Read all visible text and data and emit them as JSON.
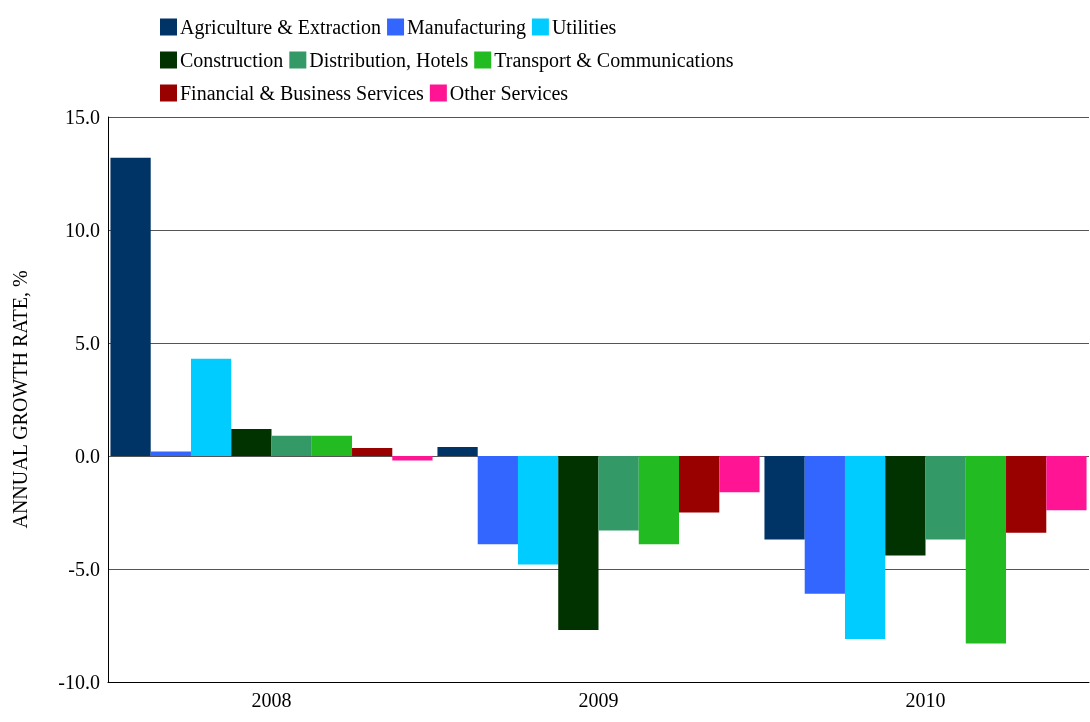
{
  "chart_data": {
    "type": "bar",
    "ylabel": "ANNUAL GROWTH RATE, %",
    "categories": [
      "2008",
      "2009",
      "2010"
    ],
    "series": [
      {
        "name": "Agriculture & Extraction",
        "color": "#003366",
        "values": [
          13.2,
          0.4,
          -3.7
        ]
      },
      {
        "name": "Manufacturing",
        "color": "#3366ff",
        "values": [
          0.2,
          -3.9,
          -6.1
        ]
      },
      {
        "name": "Utilities",
        "color": "#00ccff",
        "values": [
          4.3,
          -4.8,
          -8.1
        ]
      },
      {
        "name": "Construction",
        "color": "#003300",
        "values": [
          1.2,
          -7.7,
          -4.4
        ]
      },
      {
        "name": "Distribution, Hotels",
        "color": "#339966",
        "values": [
          0.9,
          -3.3,
          -3.7
        ]
      },
      {
        "name": "Transport & Communications",
        "color": "#22bb22",
        "values": [
          0.9,
          -3.9,
          -8.3
        ]
      },
      {
        "name": "Financial & Business Services",
        "color": "#990000",
        "values": [
          0.35,
          -2.5,
          -3.4
        ]
      },
      {
        "name": "Other Services",
        "color": "#ff1493",
        "values": [
          -0.2,
          -1.6,
          -2.4
        ]
      }
    ],
    "ylim": [
      -10,
      15
    ],
    "yticks": [
      {
        "value": -10,
        "label": "-10.0"
      },
      {
        "value": -5,
        "label": "-5.0"
      },
      {
        "value": 0,
        "label": "0.0"
      },
      {
        "value": 5,
        "label": "5.0"
      },
      {
        "value": 10,
        "label": "10.0"
      },
      {
        "value": 15,
        "label": "15.0"
      }
    ],
    "grid": "y",
    "legend": "top"
  }
}
